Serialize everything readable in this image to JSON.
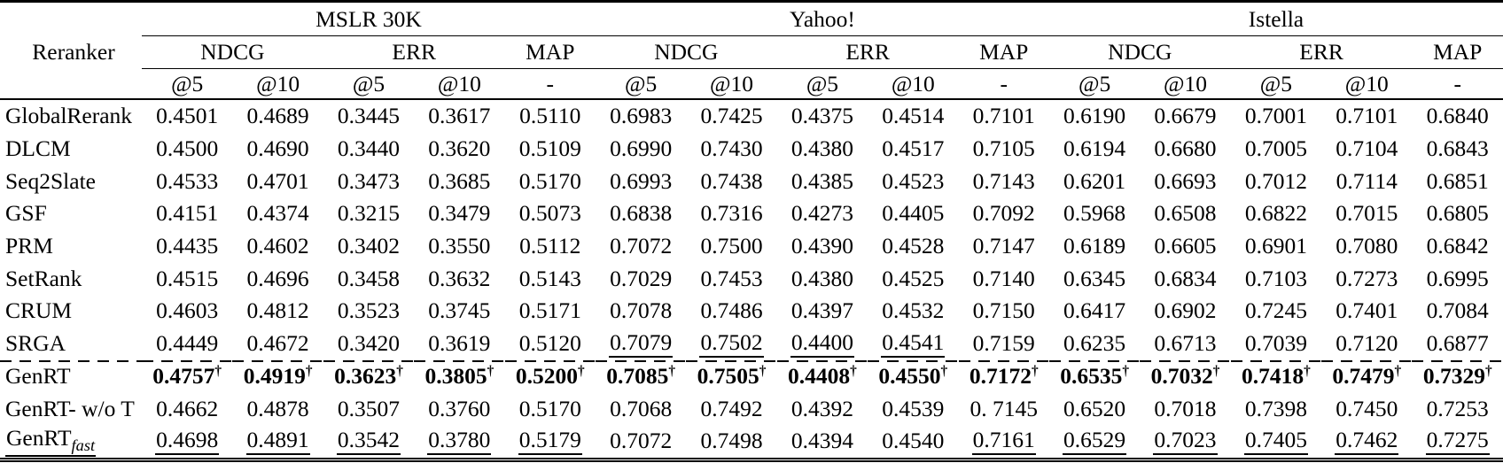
{
  "table": {
    "corner_label": "Reranker",
    "dagger": "†",
    "groups": [
      {
        "label": "MSLR 30K"
      },
      {
        "label": "Yahoo!"
      },
      {
        "label": "Istella"
      }
    ],
    "metrics": [
      "NDCG",
      "ERR",
      "MAP"
    ],
    "subheaders": [
      "@5",
      "@10",
      "@5",
      "@10",
      "-",
      "@5",
      "@10",
      "@5",
      "@10",
      "-",
      "@5",
      "@10",
      "@5",
      "@10",
      "-"
    ],
    "rows": [
      {
        "name": "GlobalRerank",
        "values": [
          "0.4501",
          "0.4689",
          "0.3445",
          "0.3617",
          "0.5110",
          "0.6983",
          "0.7425",
          "0.4375",
          "0.4514",
          "0.7101",
          "0.6190",
          "0.6679",
          "0.7001",
          "0.7101",
          "0.6840"
        ]
      },
      {
        "name": "DLCM",
        "values": [
          "0.4500",
          "0.4690",
          "0.3440",
          "0.3620",
          "0.5109",
          "0.6990",
          "0.7430",
          "0.4380",
          "0.4517",
          "0.7105",
          "0.6194",
          "0.6680",
          "0.7005",
          "0.7104",
          "0.6843"
        ]
      },
      {
        "name": "Seq2Slate",
        "values": [
          "0.4533",
          "0.4701",
          "0.3473",
          "0.3685",
          "0.5170",
          "0.6993",
          "0.7438",
          "0.4385",
          "0.4523",
          "0.7143",
          "0.6201",
          "0.6693",
          "0.7012",
          "0.7114",
          "0.6851"
        ]
      },
      {
        "name": "GSF",
        "values": [
          "0.4151",
          "0.4374",
          "0.3215",
          "0.3479",
          "0.5073",
          "0.6838",
          "0.7316",
          "0.4273",
          "0.4405",
          "0.7092",
          "0.5968",
          "0.6508",
          "0.6822",
          "0.7015",
          "0.6805"
        ]
      },
      {
        "name": "PRM",
        "values": [
          "0.4435",
          "0.4602",
          "0.3402",
          "0.3550",
          "0.5112",
          "0.7072",
          "0.7500",
          "0.4390",
          "0.4528",
          "0.7147",
          "0.6189",
          "0.6605",
          "0.6901",
          "0.7080",
          "0.6842"
        ]
      },
      {
        "name": "SetRank",
        "values": [
          "0.4515",
          "0.4696",
          "0.3458",
          "0.3632",
          "0.5143",
          "0.7029",
          "0.7453",
          "0.4380",
          "0.4525",
          "0.7140",
          "0.6345",
          "0.6834",
          "0.7103",
          "0.7273",
          "0.6995"
        ]
      },
      {
        "name": "CRUM",
        "values": [
          "0.4603",
          "0.4812",
          "0.3523",
          "0.3745",
          "0.5171",
          "0.7078",
          "0.7486",
          "0.4397",
          "0.4532",
          "0.7150",
          "0.6417",
          "0.6902",
          "0.7245",
          "0.7401",
          "0.7084"
        ]
      },
      {
        "name": "SRGA",
        "values": [
          "0.4449",
          "0.4672",
          "0.3420",
          "0.3619",
          "0.5120",
          "0.7079",
          "0.7502",
          "0.4400",
          "0.4541",
          "0.7159",
          "0.6235",
          "0.6713",
          "0.7039",
          "0.7120",
          "0.6877"
        ],
        "styles": [
          "",
          "",
          "",
          "",
          "",
          "u",
          "u",
          "u",
          "u",
          "",
          "",
          "",
          "",
          "",
          ""
        ]
      },
      {
        "name": "GenRT",
        "dashed_separator_above": true,
        "values": [
          "0.4757",
          "0.4919",
          "0.3623",
          "0.3805",
          "0.5200",
          "0.7085",
          "0.7505",
          "0.4408",
          "0.4550",
          "0.7172",
          "0.6535",
          "0.7032",
          "0.7418",
          "0.7479",
          "0.7329"
        ],
        "styles": [
          "bd",
          "bd",
          "bd",
          "bd",
          "bd",
          "bd",
          "bd",
          "bd",
          "bd",
          "bd",
          "bd",
          "bd",
          "bd",
          "bd",
          "bd"
        ]
      },
      {
        "name": "GenRT- w/o T",
        "values": [
          "0.4662",
          "0.4878",
          "0.3507",
          "0.3760",
          "0.5170",
          "0.7068",
          "0.7492",
          "0.4392",
          "0.4539",
          "0. 7145",
          "0.6520",
          "0.7018",
          "0.7398",
          "0.7450",
          "0.7253"
        ]
      },
      {
        "name": "GenRT",
        "name_sub": "fast",
        "name_underline": true,
        "values": [
          "0.4698",
          "0.4891",
          "0.3542",
          "0.3780",
          "0.5179",
          "0.7072",
          "0.7498",
          "0.4394",
          "0.4540",
          "0.7161",
          "0.6529",
          "0.7023",
          "0.7405",
          "0.7462",
          "0.7275"
        ],
        "styles": [
          "u",
          "u",
          "u",
          "u",
          "u",
          "",
          "",
          "",
          "",
          "u",
          "u",
          "u",
          "u",
          "u",
          "u"
        ]
      }
    ]
  }
}
